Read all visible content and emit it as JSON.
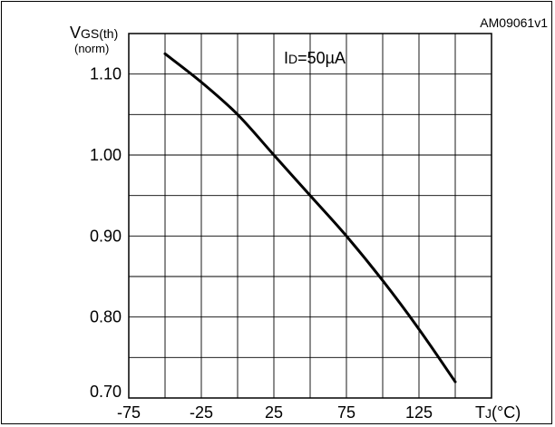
{
  "figure_code": "AM09061v1",
  "chart_data": {
    "type": "line",
    "ylabel": {
      "main": "V",
      "sub": "GS(th)",
      "note": "(norm)"
    },
    "xlabel": {
      "main": "T",
      "sub": "J",
      "unit": "(°C)"
    },
    "annotation": {
      "main": "I",
      "sub": "D",
      "value": "=50µA"
    },
    "x_ticks": [
      "-75",
      "-25",
      "25",
      "75",
      "125"
    ],
    "y_ticks": [
      "0.70",
      "0.80",
      "0.90",
      "1.00",
      "1.10"
    ],
    "xlim": [
      -75,
      175
    ],
    "ylim": [
      0.7,
      1.15
    ],
    "x_grid_step": 25,
    "y_grid_step": 0.05,
    "grid": true,
    "series": [
      {
        "color": "#000000",
        "x": [
          -50,
          -25,
          0,
          25,
          50,
          75,
          100,
          125,
          150
        ],
        "y": [
          1.125,
          1.09,
          1.05,
          1.0,
          0.95,
          0.9,
          0.845,
          0.785,
          0.72
        ]
      }
    ]
  }
}
